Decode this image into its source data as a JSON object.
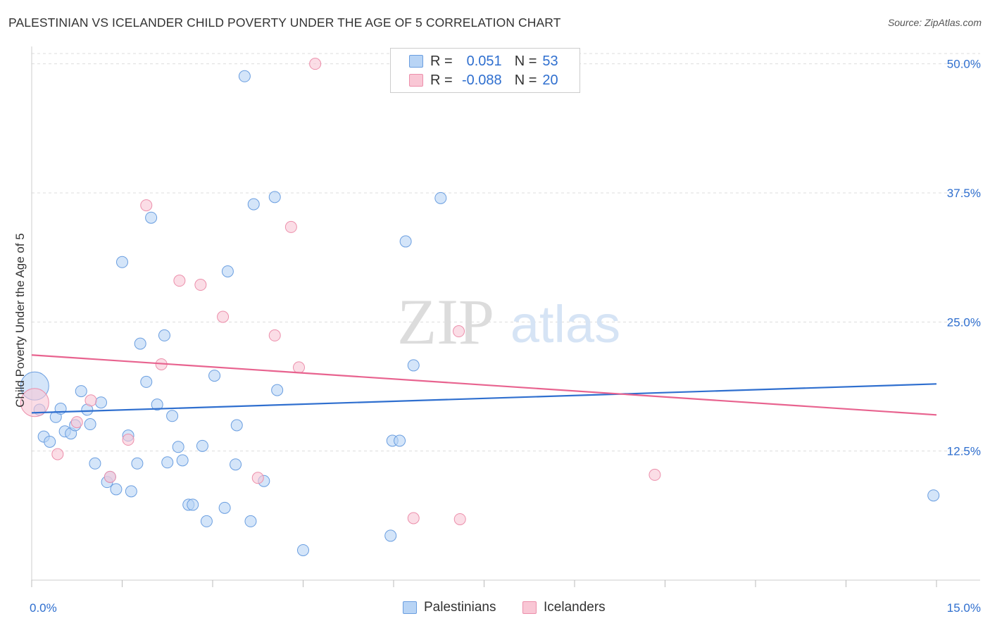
{
  "title": "PALESTINIAN VS ICELANDER CHILD POVERTY UNDER THE AGE OF 5 CORRELATION CHART",
  "source": "Source: ZipAtlas.com",
  "watermark": {
    "zip": "ZIP",
    "atlas": "atlas"
  },
  "legend": {
    "series1": {
      "r_label": "R =",
      "r_value": "0.051",
      "n_label": "N =",
      "n_value": "53"
    },
    "series2": {
      "r_label": "R =",
      "r_value": "-0.088",
      "n_label": "N =",
      "n_value": "20"
    }
  },
  "bottom_legend": {
    "series1": "Palestinians",
    "series2": "Icelanders"
  },
  "colors": {
    "blue_fill": "#b8d4f5",
    "blue_stroke": "#6a9ee0",
    "blue_line": "#2f6fcf",
    "pink_fill": "#f9c7d5",
    "pink_stroke": "#ec8fab",
    "pink_line": "#e8638f",
    "tick_label": "#2f6fcf",
    "grid": "#dddddd"
  },
  "chart_data": {
    "type": "scatter",
    "title": "PALESTINIAN VS ICELANDER CHILD POVERTY UNDER THE AGE OF 5 CORRELATION CHART",
    "xlabel": "",
    "ylabel": "Child Poverty Under the Age of 5",
    "xlim": [
      0,
      15
    ],
    "ylim": [
      0,
      51
    ],
    "x_tick_labels": [
      {
        "value": 0,
        "label": "0.0%"
      },
      {
        "value": 15,
        "label": "15.0%"
      }
    ],
    "y_tick_labels": [
      {
        "value": 12.5,
        "label": "12.5%"
      },
      {
        "value": 25,
        "label": "25.0%"
      },
      {
        "value": 37.5,
        "label": "37.5%"
      },
      {
        "value": 50,
        "label": "50.0%"
      }
    ],
    "grid": true,
    "series": [
      {
        "name": "Palestinians",
        "color": "blue",
        "trend": {
          "x": [
            0,
            15
          ],
          "y": [
            16.2,
            19.0
          ]
        },
        "points": [
          {
            "x": 0.05,
            "y": 18.8,
            "big": true
          },
          {
            "x": 0.13,
            "y": 16.5
          },
          {
            "x": 0.2,
            "y": 13.9
          },
          {
            "x": 0.3,
            "y": 13.4
          },
          {
            "x": 0.4,
            "y": 15.8
          },
          {
            "x": 0.48,
            "y": 16.6
          },
          {
            "x": 0.55,
            "y": 14.4
          },
          {
            "x": 0.65,
            "y": 14.2
          },
          {
            "x": 0.72,
            "y": 15.0
          },
          {
            "x": 0.82,
            "y": 18.3
          },
          {
            "x": 0.92,
            "y": 16.5
          },
          {
            "x": 0.97,
            "y": 15.1
          },
          {
            "x": 1.05,
            "y": 11.3
          },
          {
            "x": 1.15,
            "y": 17.2
          },
          {
            "x": 1.25,
            "y": 9.5
          },
          {
            "x": 1.3,
            "y": 10.0
          },
          {
            "x": 1.4,
            "y": 8.8
          },
          {
            "x": 1.5,
            "y": 30.8
          },
          {
            "x": 1.6,
            "y": 14.0
          },
          {
            "x": 1.65,
            "y": 8.6
          },
          {
            "x": 1.75,
            "y": 11.3
          },
          {
            "x": 1.8,
            "y": 22.9
          },
          {
            "x": 1.9,
            "y": 19.2
          },
          {
            "x": 1.98,
            "y": 35.1
          },
          {
            "x": 2.08,
            "y": 17.0
          },
          {
            "x": 2.2,
            "y": 23.7
          },
          {
            "x": 2.25,
            "y": 11.4
          },
          {
            "x": 2.33,
            "y": 15.9
          },
          {
            "x": 2.43,
            "y": 12.9
          },
          {
            "x": 2.5,
            "y": 11.6
          },
          {
            "x": 2.6,
            "y": 7.3
          },
          {
            "x": 2.67,
            "y": 7.3
          },
          {
            "x": 2.83,
            "y": 13.0
          },
          {
            "x": 2.9,
            "y": 5.7
          },
          {
            "x": 3.03,
            "y": 19.8
          },
          {
            "x": 3.2,
            "y": 7.0
          },
          {
            "x": 3.25,
            "y": 29.9
          },
          {
            "x": 3.38,
            "y": 11.2
          },
          {
            "x": 3.4,
            "y": 15.0
          },
          {
            "x": 3.53,
            "y": 48.8
          },
          {
            "x": 3.63,
            "y": 5.7
          },
          {
            "x": 3.68,
            "y": 36.4
          },
          {
            "x": 3.85,
            "y": 9.6
          },
          {
            "x": 4.03,
            "y": 37.1
          },
          {
            "x": 4.07,
            "y": 18.4
          },
          {
            "x": 4.5,
            "y": 2.9
          },
          {
            "x": 5.95,
            "y": 4.3
          },
          {
            "x": 5.98,
            "y": 13.5
          },
          {
            "x": 6.1,
            "y": 13.5
          },
          {
            "x": 6.2,
            "y": 32.8
          },
          {
            "x": 6.33,
            "y": 20.8
          },
          {
            "x": 6.78,
            "y": 37.0
          },
          {
            "x": 14.95,
            "y": 8.2
          }
        ]
      },
      {
        "name": "Icelanders",
        "color": "pink",
        "trend": {
          "x": [
            0,
            15
          ],
          "y": [
            21.8,
            16.0
          ]
        },
        "points": [
          {
            "x": 0.05,
            "y": 17.2,
            "big": true
          },
          {
            "x": 0.43,
            "y": 12.2
          },
          {
            "x": 0.75,
            "y": 15.3
          },
          {
            "x": 0.98,
            "y": 17.4
          },
          {
            "x": 1.3,
            "y": 10.0
          },
          {
            "x": 1.6,
            "y": 13.6
          },
          {
            "x": 1.9,
            "y": 36.3
          },
          {
            "x": 2.15,
            "y": 20.9
          },
          {
            "x": 2.45,
            "y": 29.0
          },
          {
            "x": 2.8,
            "y": 28.6
          },
          {
            "x": 3.17,
            "y": 25.5
          },
          {
            "x": 3.75,
            "y": 9.9
          },
          {
            "x": 4.03,
            "y": 23.7
          },
          {
            "x": 4.3,
            "y": 34.2
          },
          {
            "x": 4.43,
            "y": 20.6
          },
          {
            "x": 4.7,
            "y": 50.0
          },
          {
            "x": 6.33,
            "y": 6.0
          },
          {
            "x": 7.08,
            "y": 24.1
          },
          {
            "x": 7.1,
            "y": 5.9
          },
          {
            "x": 10.33,
            "y": 10.2
          }
        ]
      }
    ]
  }
}
